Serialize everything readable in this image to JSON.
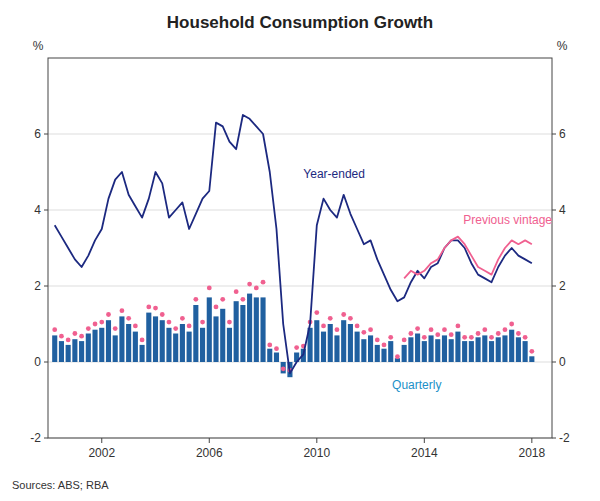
{
  "chart_data": {
    "type": "bar",
    "title": "Household Consumption Growth",
    "source": "Sources: ABS; RBA",
    "ylabel": "%",
    "y2label": "%",
    "xlim": [
      2000.0,
      2018.75
    ],
    "xticks": [
      2002,
      2006,
      2010,
      2014,
      2018
    ],
    "ylim": [
      -2,
      8
    ],
    "yticks": [
      -2,
      0,
      2,
      4,
      6
    ],
    "y2lim": [
      -2,
      8
    ],
    "y2ticks": [
      -2,
      0,
      2,
      4,
      6
    ],
    "grid": true,
    "series": [
      {
        "type": "bar",
        "color": "#2060A0",
        "x": [
          2000.25,
          2000.5,
          2000.75,
          2001.0,
          2001.25,
          2001.5,
          2001.75,
          2002.0,
          2002.25,
          2002.5,
          2002.75,
          2003.0,
          2003.25,
          2003.5,
          2003.75,
          2004.0,
          2004.25,
          2004.5,
          2004.75,
          2005.0,
          2005.25,
          2005.5,
          2005.75,
          2006.0,
          2006.25,
          2006.5,
          2006.75,
          2007.0,
          2007.25,
          2007.5,
          2007.75,
          2008.0,
          2008.25,
          2008.5,
          2008.75,
          2009.0,
          2009.25,
          2009.5,
          2009.75,
          2010.0,
          2010.25,
          2010.5,
          2010.75,
          2011.0,
          2011.25,
          2011.5,
          2011.75,
          2012.0,
          2012.25,
          2012.5,
          2012.75,
          2013.0,
          2013.25,
          2013.5,
          2013.75,
          2014.0,
          2014.25,
          2014.5,
          2014.75,
          2015.0,
          2015.25,
          2015.5,
          2015.75,
          2016.0,
          2016.25,
          2016.5,
          2016.75,
          2017.0,
          2017.25,
          2017.5,
          2017.75,
          2018.0
        ],
        "values": [
          0.7,
          0.55,
          0.45,
          0.6,
          0.55,
          0.75,
          0.85,
          0.9,
          1.1,
          0.7,
          1.2,
          1.0,
          0.8,
          0.45,
          1.3,
          1.2,
          1.1,
          0.9,
          0.75,
          1.0,
          0.8,
          1.5,
          0.9,
          1.7,
          1.2,
          1.4,
          0.9,
          1.6,
          1.5,
          1.8,
          1.7,
          1.7,
          0.35,
          0.25,
          -0.3,
          -0.4,
          0.25,
          0.35,
          0.9,
          1.1,
          0.8,
          1.0,
          0.7,
          1.1,
          1.0,
          0.8,
          0.6,
          0.7,
          0.45,
          0.35,
          0.55,
          0.1,
          0.45,
          0.65,
          0.75,
          0.55,
          0.7,
          0.6,
          0.7,
          0.6,
          0.8,
          0.55,
          0.55,
          0.65,
          0.7,
          0.55,
          0.65,
          0.7,
          0.85,
          0.65,
          0.55,
          0.15
        ]
      },
      {
        "type": "scatter",
        "marker": "circle",
        "color": "#F06090",
        "x": [
          2000.25,
          2000.5,
          2000.75,
          2001.0,
          2001.25,
          2001.5,
          2001.75,
          2002.0,
          2002.25,
          2002.5,
          2002.75,
          2003.0,
          2003.25,
          2003.5,
          2003.75,
          2004.0,
          2004.25,
          2004.5,
          2004.75,
          2005.0,
          2005.25,
          2005.5,
          2005.75,
          2006.0,
          2006.25,
          2006.5,
          2006.75,
          2007.0,
          2007.25,
          2007.5,
          2007.75,
          2008.0,
          2008.25,
          2008.5,
          2008.75,
          2009.0,
          2009.25,
          2009.5,
          2009.75,
          2010.0,
          2010.25,
          2010.5,
          2010.75,
          2011.0,
          2011.25,
          2011.5,
          2011.75,
          2012.0,
          2012.25,
          2012.5,
          2012.75,
          2013.0,
          2013.25,
          2013.5,
          2013.75,
          2014.0,
          2014.25,
          2014.5,
          2014.75,
          2015.0,
          2015.25,
          2015.5,
          2015.75,
          2016.0,
          2016.25,
          2016.5,
          2016.75,
          2017.0,
          2017.25,
          2017.5,
          2017.75,
          2018.0
        ],
        "values": [
          0.85,
          0.68,
          0.58,
          0.75,
          0.68,
          0.88,
          1.0,
          1.05,
          1.25,
          0.88,
          1.35,
          1.15,
          0.95,
          0.58,
          1.45,
          1.42,
          1.25,
          1.05,
          0.88,
          1.15,
          0.95,
          1.65,
          1.05,
          1.95,
          1.45,
          1.65,
          1.05,
          1.85,
          1.65,
          2.05,
          1.95,
          2.1,
          0.45,
          0.35,
          -0.18,
          -0.22,
          0.38,
          0.42,
          1.05,
          1.3,
          0.95,
          1.15,
          0.85,
          1.25,
          1.15,
          0.95,
          0.78,
          0.85,
          0.58,
          0.45,
          0.65,
          0.14,
          0.58,
          0.75,
          0.88,
          0.65,
          0.85,
          0.72,
          0.85,
          0.72,
          0.95,
          0.65,
          0.65,
          0.75,
          0.85,
          0.65,
          0.75,
          0.85,
          1.0,
          0.75,
          0.65,
          0.28
        ]
      },
      {
        "type": "line",
        "color": "#1C2980",
        "x": [
          2000.25,
          2000.5,
          2000.75,
          2001.0,
          2001.25,
          2001.5,
          2001.75,
          2002.0,
          2002.25,
          2002.5,
          2002.75,
          2003.0,
          2003.25,
          2003.5,
          2003.75,
          2004.0,
          2004.25,
          2004.5,
          2004.75,
          2005.0,
          2005.25,
          2005.5,
          2005.75,
          2006.0,
          2006.25,
          2006.5,
          2006.75,
          2007.0,
          2007.25,
          2007.5,
          2007.75,
          2008.0,
          2008.25,
          2008.5,
          2008.75,
          2009.0,
          2009.25,
          2009.5,
          2009.75,
          2010.0,
          2010.25,
          2010.5,
          2010.75,
          2011.0,
          2011.25,
          2011.5,
          2011.75,
          2012.0,
          2012.25,
          2012.5,
          2012.75,
          2013.0,
          2013.25,
          2013.5,
          2013.75,
          2014.0,
          2014.25,
          2014.5,
          2014.75,
          2015.0,
          2015.25,
          2015.5,
          2015.75,
          2016.0,
          2016.25,
          2016.5,
          2016.75,
          2017.0,
          2017.25,
          2017.5,
          2017.75,
          2018.0
        ],
        "values": [
          3.6,
          3.3,
          3.0,
          2.7,
          2.5,
          2.8,
          3.2,
          3.5,
          4.3,
          4.8,
          5.0,
          4.4,
          4.1,
          3.8,
          4.3,
          5.0,
          4.7,
          3.8,
          4.0,
          4.2,
          3.5,
          3.9,
          4.3,
          4.5,
          6.3,
          6.2,
          5.8,
          5.6,
          6.5,
          6.4,
          6.2,
          6.0,
          5.0,
          3.5,
          1.0,
          -0.3,
          0.0,
          0.2,
          1.0,
          3.6,
          4.3,
          4.0,
          3.8,
          4.4,
          3.9,
          3.5,
          3.1,
          3.2,
          2.7,
          2.3,
          1.9,
          1.6,
          1.7,
          2.1,
          2.4,
          2.2,
          2.5,
          2.6,
          3.0,
          3.2,
          3.2,
          3.0,
          2.6,
          2.3,
          2.2,
          2.1,
          2.5,
          2.8,
          3.0,
          2.8,
          2.7,
          2.6
        ]
      },
      {
        "type": "line",
        "color": "#F06090",
        "x": [
          2013.25,
          2013.5,
          2013.75,
          2014.0,
          2014.25,
          2014.5,
          2014.75,
          2015.0,
          2015.25,
          2015.5,
          2015.75,
          2016.0,
          2016.25,
          2016.5,
          2016.75,
          2017.0,
          2017.25,
          2017.5,
          2017.75,
          2018.0
        ],
        "values": [
          2.2,
          2.4,
          2.3,
          2.4,
          2.6,
          2.7,
          3.0,
          3.2,
          3.3,
          3.1,
          2.8,
          2.5,
          2.4,
          2.3,
          2.7,
          3.0,
          3.2,
          3.1,
          3.2,
          3.1
        ]
      }
    ],
    "annotations": [
      {
        "text": "Year-ended",
        "x": 2009.5,
        "y": 4.85,
        "color": "#1C2980"
      },
      {
        "text": "Previous vintage",
        "x": 2015.45,
        "y": 3.62,
        "color": "#F06090"
      },
      {
        "text": "Quarterly",
        "x": 2012.8,
        "y": -0.72,
        "color": "#2090C8"
      }
    ]
  }
}
